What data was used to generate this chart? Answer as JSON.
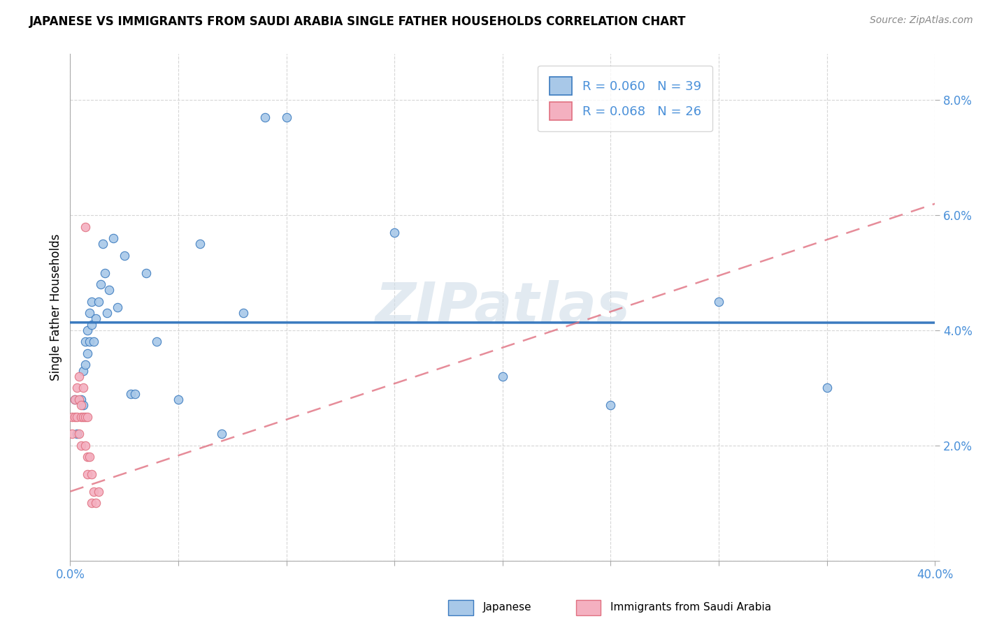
{
  "title": "JAPANESE VS IMMIGRANTS FROM SAUDI ARABIA SINGLE FATHER HOUSEHOLDS CORRELATION CHART",
  "source": "Source: ZipAtlas.com",
  "ylabel": "Single Father Households",
  "watermark": "ZIPatlas",
  "xlim": [
    0.0,
    0.4
  ],
  "ylim": [
    0.0,
    0.088
  ],
  "xticks": [
    0.0,
    0.05,
    0.1,
    0.15,
    0.2,
    0.25,
    0.3,
    0.35,
    0.4
  ],
  "yticks": [
    0.0,
    0.02,
    0.04,
    0.06,
    0.08
  ],
  "xticklabels": [
    "0.0%",
    "",
    "",
    "",
    "",
    "",
    "",
    "",
    "40.0%"
  ],
  "yticklabels": [
    "",
    "2.0%",
    "4.0%",
    "6.0%",
    "8.0%"
  ],
  "legend_r1": "R = 0.060",
  "legend_n1": "N = 39",
  "legend_r2": "R = 0.068",
  "legend_n2": "N = 26",
  "color_japanese": "#a8c8e8",
  "color_saudi": "#f4b0c0",
  "line_color_japanese": "#3a7abf",
  "line_color_saudi": "#e07080",
  "japanese_x": [
    0.002,
    0.003,
    0.005,
    0.006,
    0.006,
    0.007,
    0.007,
    0.008,
    0.008,
    0.009,
    0.009,
    0.01,
    0.01,
    0.011,
    0.012,
    0.013,
    0.014,
    0.015,
    0.016,
    0.017,
    0.018,
    0.02,
    0.022,
    0.025,
    0.028,
    0.03,
    0.035,
    0.04,
    0.05,
    0.06,
    0.07,
    0.08,
    0.09,
    0.1,
    0.15,
    0.2,
    0.25,
    0.3,
    0.35
  ],
  "japanese_y": [
    0.028,
    0.022,
    0.028,
    0.033,
    0.027,
    0.038,
    0.034,
    0.04,
    0.036,
    0.043,
    0.038,
    0.041,
    0.045,
    0.038,
    0.042,
    0.045,
    0.048,
    0.055,
    0.05,
    0.043,
    0.047,
    0.056,
    0.044,
    0.053,
    0.029,
    0.029,
    0.05,
    0.038,
    0.028,
    0.055,
    0.022,
    0.043,
    0.077,
    0.077,
    0.057,
    0.032,
    0.027,
    0.045,
    0.03
  ],
  "saudi_x": [
    0.001,
    0.001,
    0.002,
    0.002,
    0.003,
    0.003,
    0.004,
    0.004,
    0.004,
    0.005,
    0.005,
    0.005,
    0.006,
    0.006,
    0.007,
    0.007,
    0.007,
    0.008,
    0.008,
    0.008,
    0.009,
    0.01,
    0.01,
    0.011,
    0.012,
    0.013
  ],
  "saudi_y": [
    0.025,
    0.022,
    0.028,
    0.025,
    0.03,
    0.025,
    0.032,
    0.028,
    0.022,
    0.027,
    0.025,
    0.02,
    0.03,
    0.025,
    0.058,
    0.025,
    0.02,
    0.025,
    0.018,
    0.015,
    0.018,
    0.015,
    0.01,
    0.012,
    0.01,
    0.012
  ],
  "saudi_trend_x0": 0.0,
  "saudi_trend_y0": 0.012,
  "saudi_trend_x1": 0.4,
  "saudi_trend_y1": 0.062
}
